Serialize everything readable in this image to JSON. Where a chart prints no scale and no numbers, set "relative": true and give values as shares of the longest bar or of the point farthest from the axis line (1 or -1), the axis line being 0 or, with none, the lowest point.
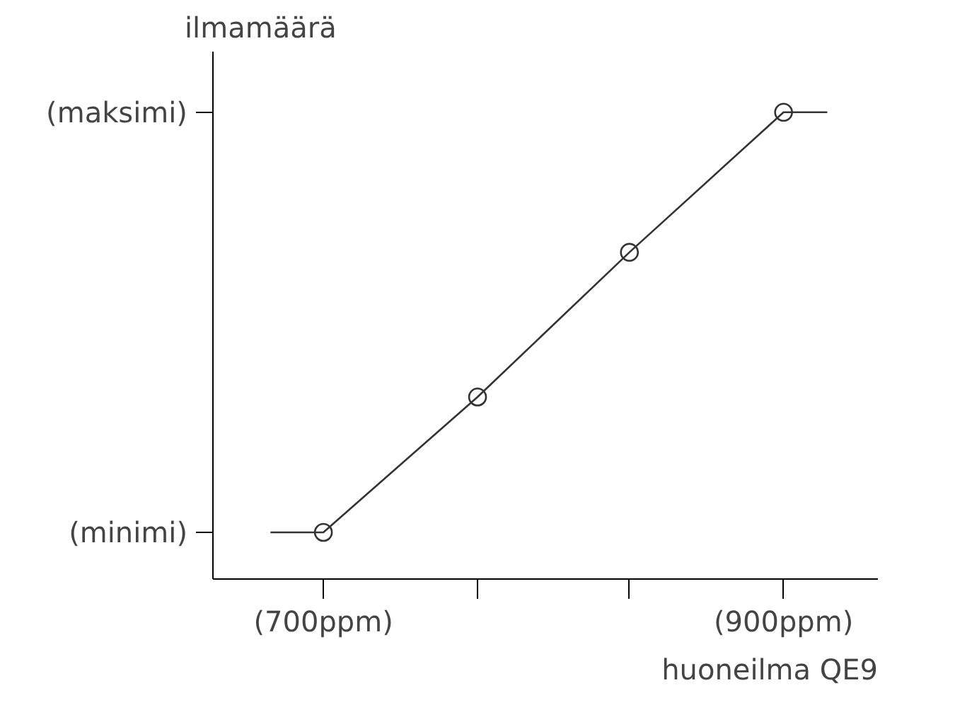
{
  "chart_data": {
    "type": "line",
    "relative": true,
    "xlabel": "huoneilma QE9",
    "ylabel": "ilmamäärä",
    "xlim": [
      652,
      941
    ],
    "xticks": [
      {
        "value": 700,
        "label": "(700ppm)"
      },
      {
        "value": 767,
        "label": null
      },
      {
        "value": 833,
        "label": null
      },
      {
        "value": 900,
        "label": "(900ppm)"
      }
    ],
    "annotations": [
      "(minimi)",
      "(maksimi)"
    ],
    "grid": false,
    "series": [
      {
        "color": "#333333",
        "marker": "none",
        "x": [
          677,
          700,
          767,
          833,
          900,
          919
        ],
        "values": [
          0.1,
          0.1,
          0.39,
          0.7,
          1,
          1
        ]
      },
      {
        "type": "scatter",
        "color": "#333333",
        "marker": "circle",
        "x": [
          700,
          767,
          833,
          900
        ],
        "values": [
          0.1,
          0.39,
          0.7,
          1
        ]
      }
    ]
  }
}
